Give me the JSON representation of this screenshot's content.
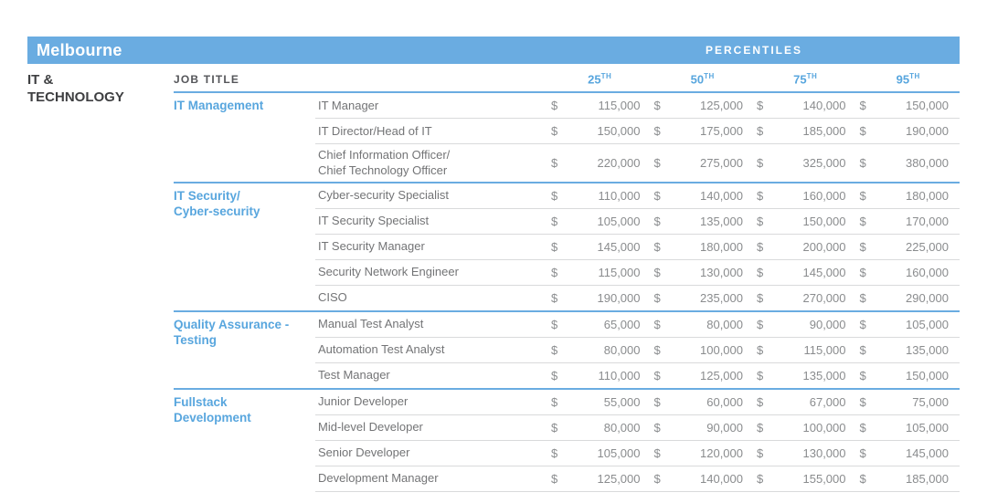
{
  "colors": {
    "accent_blue": "#6aace1",
    "blue_text": "#58a6de",
    "dark_heading": "#3e3f41",
    "body_text": "#8a8c8e",
    "row_line": "#d9dadb"
  },
  "header_bar": {
    "region_label": "Melbourne",
    "percentiles_label": "PERCENTILES"
  },
  "sidebar_label": "IT &\nTECHNOLOGY",
  "table": {
    "job_title_header": "JOB TITLE",
    "currency_symbol": "$",
    "percentile_columns": [
      {
        "num": "25",
        "sup": "TH"
      },
      {
        "num": "50",
        "sup": "TH"
      },
      {
        "num": "75",
        "sup": "TH"
      },
      {
        "num": "95",
        "sup": "TH"
      }
    ],
    "sections": [
      {
        "category": "IT Management",
        "rows": [
          {
            "title": "IT Manager",
            "values": [
              "115,000",
              "125,000",
              "140,000",
              "150,000"
            ]
          },
          {
            "title": "IT Director/Head of IT",
            "values": [
              "150,000",
              "175,000",
              "185,000",
              "190,000"
            ]
          },
          {
            "title": "Chief Information Officer/\nChief Technology Officer",
            "values": [
              "220,000",
              "275,000",
              "325,000",
              "380,000"
            ]
          }
        ]
      },
      {
        "category": "IT Security/\nCyber-security",
        "rows": [
          {
            "title": "Cyber-security Specialist",
            "values": [
              "110,000",
              "140,000",
              "160,000",
              "180,000"
            ]
          },
          {
            "title": "IT Security Specialist",
            "values": [
              "105,000",
              "135,000",
              "150,000",
              "170,000"
            ]
          },
          {
            "title": "IT Security Manager",
            "values": [
              "145,000",
              "180,000",
              "200,000",
              "225,000"
            ]
          },
          {
            "title": "Security Network Engineer",
            "values": [
              "115,000",
              "130,000",
              "145,000",
              "160,000"
            ]
          },
          {
            "title": "CISO",
            "values": [
              "190,000",
              "235,000",
              "270,000",
              "290,000"
            ]
          }
        ]
      },
      {
        "category": "Quality Assurance -\nTesting",
        "rows": [
          {
            "title": "Manual Test Analyst",
            "values": [
              "65,000",
              "80,000",
              "90,000",
              "105,000"
            ]
          },
          {
            "title": "Automation Test Analyst",
            "values": [
              "80,000",
              "100,000",
              "115,000",
              "135,000"
            ]
          },
          {
            "title": "Test Manager",
            "values": [
              "110,000",
              "125,000",
              "135,000",
              "150,000"
            ]
          }
        ]
      },
      {
        "category": "Fullstack\nDevelopment",
        "rows": [
          {
            "title": "Junior Developer",
            "values": [
              "55,000",
              "60,000",
              "67,000",
              "75,000"
            ]
          },
          {
            "title": "Mid-level Developer",
            "values": [
              "80,000",
              "90,000",
              "100,000",
              "105,000"
            ]
          },
          {
            "title": "Senior Developer",
            "values": [
              "105,000",
              "120,000",
              "130,000",
              "145,000"
            ]
          },
          {
            "title": "Development Manager",
            "values": [
              "125,000",
              "140,000",
              "155,000",
              "185,000"
            ]
          }
        ]
      }
    ]
  }
}
